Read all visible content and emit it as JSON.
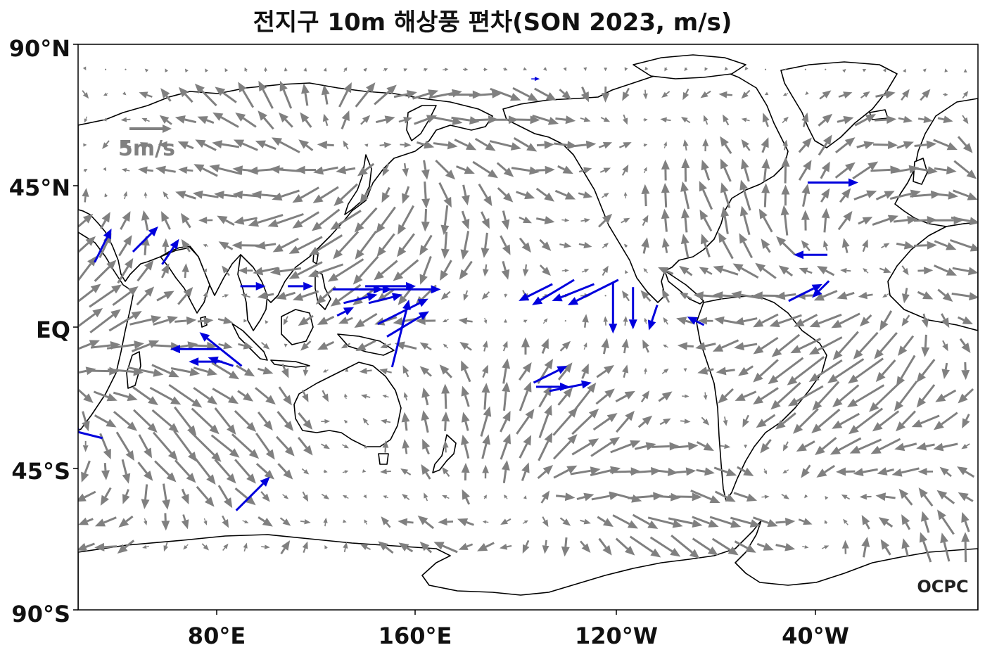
{
  "title": "전지구 10m 해상풍 편차(SON 2023, m/s)",
  "y_ticks": [
    "90°N",
    "45°N",
    "EQ",
    "45°S",
    "90°S"
  ],
  "x_ticks": [
    "80°E",
    "160°E",
    "120°W",
    "40°W"
  ],
  "reference_vector": {
    "label": "5m/s",
    "magnitude": 5,
    "color": "#808080"
  },
  "logo": "OCPC",
  "colors": {
    "normal": "#808080",
    "strong": "#0000dd",
    "coast": "#000000"
  },
  "map": {
    "projection": "plate-carree",
    "lon_range": [
      25,
      385
    ],
    "lat_range": [
      -90,
      90
    ],
    "central_longitude": 205
  },
  "vector_field": {
    "grid_spacing_deg": 5,
    "units": "m/s",
    "strong_vectors": [
      {
        "lon": 35,
        "lat": 26,
        "u": 2,
        "v": 4
      },
      {
        "lon": 52,
        "lat": 28,
        "u": 3,
        "v": 3
      },
      {
        "lon": 62,
        "lat": 24,
        "u": 2,
        "v": 3
      },
      {
        "lon": 72,
        "lat": -7,
        "u": -6,
        "v": 0
      },
      {
        "lon": 82,
        "lat": -7,
        "u": -5,
        "v": 4
      },
      {
        "lon": 76,
        "lat": -11,
        "u": -4,
        "v": 0
      },
      {
        "lon": 82,
        "lat": -11,
        "u": -3,
        "v": 1
      },
      {
        "lon": 95,
        "lat": 13,
        "u": 3,
        "v": 0
      },
      {
        "lon": 114,
        "lat": 13,
        "u": 3,
        "v": 0
      },
      {
        "lon": 137,
        "lat": 12,
        "u": 6,
        "v": 0
      },
      {
        "lon": 144,
        "lat": 12,
        "u": 4,
        "v": 0
      },
      {
        "lon": 150,
        "lat": 13,
        "u": 6,
        "v": 0
      },
      {
        "lon": 160,
        "lat": 12,
        "u": 6,
        "v": 0
      },
      {
        "lon": 138,
        "lat": 9,
        "u": 4,
        "v": 1
      },
      {
        "lon": 148,
        "lat": 9,
        "u": 4,
        "v": 1
      },
      {
        "lon": 155,
        "lat": 5,
        "u": 6,
        "v": 3
      },
      {
        "lon": 154,
        "lat": -2,
        "u": 2,
        "v": 8
      },
      {
        "lon": 157,
        "lat": 1,
        "u": 5,
        "v": 3
      },
      {
        "lon": 132,
        "lat": 5,
        "u": 2,
        "v": 1
      },
      {
        "lon": 208,
        "lat": 11,
        "u": -4,
        "v": -2
      },
      {
        "lon": 215,
        "lat": 11,
        "u": -5,
        "v": -3
      },
      {
        "lon": 223,
        "lat": 11,
        "u": -5,
        "v": -2
      },
      {
        "lon": 231,
        "lat": 11,
        "u": -6,
        "v": -3
      },
      {
        "lon": 239,
        "lat": 6,
        "u": 0,
        "v": -6
      },
      {
        "lon": 247,
        "lat": 6,
        "u": 0,
        "v": -5
      },
      {
        "lon": 255,
        "lat": 3,
        "u": -1,
        "v": -3
      },
      {
        "lon": 272,
        "lat": 2,
        "u": -2,
        "v": 1
      },
      {
        "lon": 316,
        "lat": 11,
        "u": 4,
        "v": 2
      },
      {
        "lon": 322,
        "lat": 12,
        "u": -2,
        "v": -2
      },
      {
        "lon": 318,
        "lat": 23,
        "u": -4,
        "v": 0
      },
      {
        "lon": 327,
        "lat": 46,
        "u": 6,
        "v": 0
      },
      {
        "lon": 208,
        "lat": 79,
        "u": 1,
        "v": 0
      },
      {
        "lon": 214,
        "lat": -15,
        "u": 4,
        "v": 2
      },
      {
        "lon": 215,
        "lat": -19,
        "u": 4,
        "v": 0
      },
      {
        "lon": 222,
        "lat": -19,
        "u": 5,
        "v": 1
      },
      {
        "lon": 95,
        "lat": -53,
        "u": 4,
        "v": 4
      },
      {
        "lon": 28,
        "lat": -34,
        "u": -4,
        "v": 1
      }
    ]
  }
}
